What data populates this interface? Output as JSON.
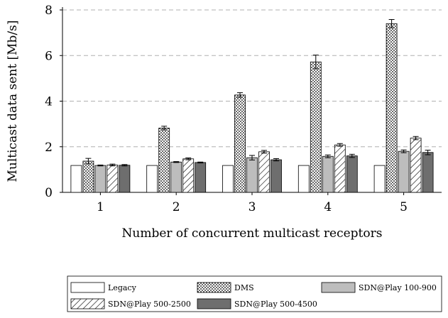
{
  "chart_data": {
    "type": "bar",
    "xlabel": "Number of concurrent multicast receptors",
    "ylabel": "Multicast data sent [Mb/s]",
    "categories": [
      "1",
      "2",
      "3",
      "4",
      "5"
    ],
    "ylim": [
      0,
      8
    ],
    "yticks": [
      0,
      2,
      4,
      6,
      8
    ],
    "grid": "horizontal dashed",
    "legend_position": "bottom",
    "series": [
      {
        "name": "Legacy",
        "pattern": "white",
        "values": [
          1.18,
          1.18,
          1.18,
          1.18,
          1.18
        ],
        "errors": [
          0,
          0,
          0,
          0,
          0
        ]
      },
      {
        "name": "DMS",
        "pattern": "dots",
        "values": [
          1.37,
          2.82,
          4.27,
          5.72,
          7.4
        ],
        "errors": [
          0.12,
          0.08,
          0.1,
          0.3,
          0.18
        ]
      },
      {
        "name": "SDN@Play 100-900",
        "pattern": "lightgray",
        "values": [
          1.18,
          1.33,
          1.52,
          1.58,
          1.8
        ],
        "errors": [
          0.02,
          0.02,
          0.1,
          0.06,
          0.06
        ]
      },
      {
        "name": "SDN@Play 500-2500",
        "pattern": "hatch",
        "values": [
          1.2,
          1.47,
          1.78,
          2.08,
          2.38
        ],
        "errors": [
          0.04,
          0.04,
          0.06,
          0.06,
          0.07
        ]
      },
      {
        "name": "SDN@Play 500-4500",
        "pattern": "darkgray",
        "values": [
          1.19,
          1.31,
          1.43,
          1.6,
          1.75
        ],
        "errors": [
          0.03,
          0.02,
          0.05,
          0.07,
          0.1
        ]
      }
    ]
  }
}
